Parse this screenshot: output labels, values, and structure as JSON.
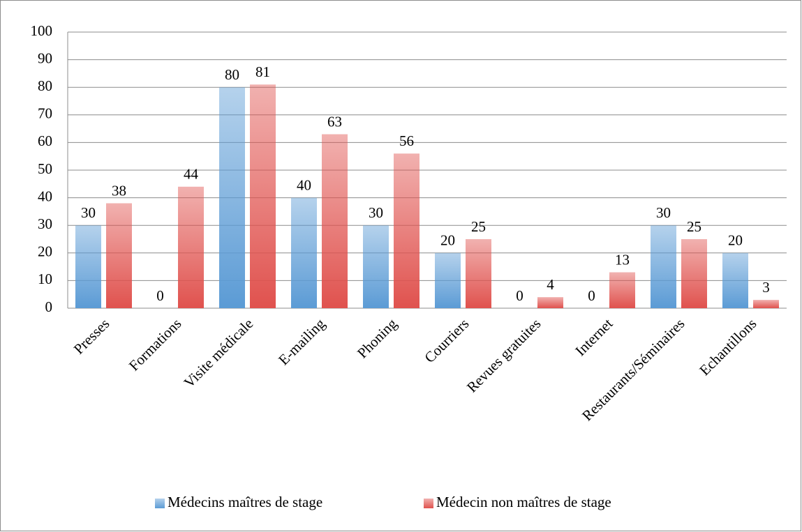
{
  "chart_data": {
    "type": "bar",
    "categories": [
      "Presses",
      "Formations",
      "Visite médicale",
      "E-mailing",
      "Phoning",
      "Courriers",
      "Revues gratuites",
      "Internet",
      "Restaurants/Séminaires",
      "Echantillons"
    ],
    "series": [
      {
        "name": "Médecins maîtres de stage",
        "color": "#5b9bd5",
        "values": [
          30,
          0,
          80,
          40,
          30,
          20,
          0,
          0,
          30,
          20
        ]
      },
      {
        "name": "Médecin non maîtres de stage",
        "color": "#e0524e",
        "values": [
          38,
          44,
          81,
          63,
          56,
          25,
          4,
          13,
          25,
          3
        ]
      }
    ],
    "ylim": [
      0,
      100
    ],
    "yticks": [
      0,
      10,
      20,
      30,
      40,
      50,
      60,
      70,
      80,
      90,
      100
    ],
    "grid": true,
    "legend": "bottom"
  }
}
